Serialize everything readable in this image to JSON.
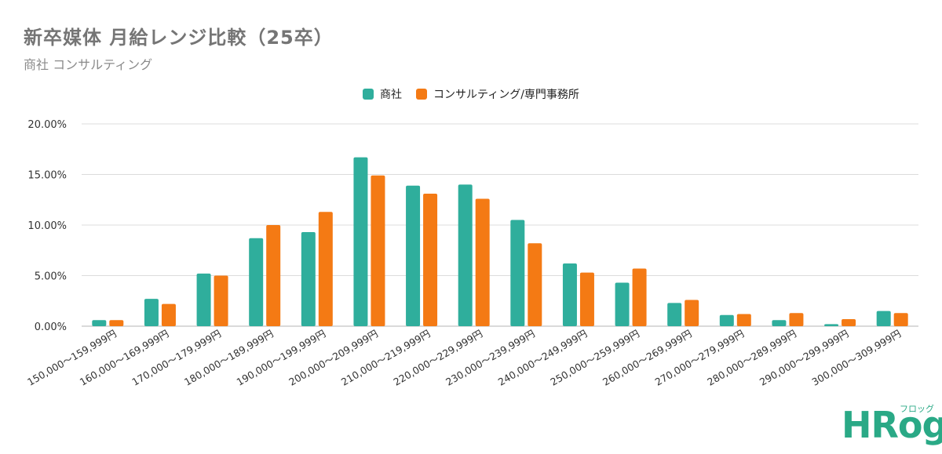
{
  "colors": {
    "series1": "#2fae9c",
    "series2": "#f47a14",
    "grid": "#dcdcdc",
    "logo": "#2aa986"
  },
  "logo": {
    "main": "HRog",
    "kana": "フロッグ"
  },
  "chart_data": {
    "type": "bar",
    "title": "新卒媒体 月給レンジ比較（25卒）",
    "subtitle": "商社 コンサルティング",
    "categories": [
      "150,000〜159,999円",
      "160,000〜169,999円",
      "170,000〜179,999円",
      "180,000〜189,999円",
      "190,000〜199,999円",
      "200,000〜209,999円",
      "210,000〜219,999円",
      "220,000〜229,999円",
      "230,000〜239,999円",
      "240,000〜249,999円",
      "250,000〜259,999円",
      "260,000〜269,999円",
      "270,000〜279,999円",
      "280,000〜289,999円",
      "290,000〜299,999円",
      "300,000〜309,999円"
    ],
    "series": [
      {
        "name": "商社",
        "values": [
          0.6,
          2.7,
          5.2,
          8.7,
          9.3,
          16.7,
          13.9,
          14.0,
          10.5,
          6.2,
          4.3,
          2.3,
          1.1,
          0.6,
          0.2,
          1.5
        ]
      },
      {
        "name": "コンサルティング/専門事務所",
        "values": [
          0.6,
          2.2,
          5.0,
          10.0,
          11.3,
          14.9,
          13.1,
          12.6,
          8.2,
          5.3,
          5.7,
          2.6,
          1.2,
          1.3,
          0.7,
          1.3
        ]
      }
    ],
    "yticks": [
      "0.00%",
      "5.00%",
      "10.00%",
      "15.00%",
      "20.00%"
    ],
    "ylim": [
      0,
      20
    ],
    "grid": true,
    "legend_position": "top-center"
  }
}
